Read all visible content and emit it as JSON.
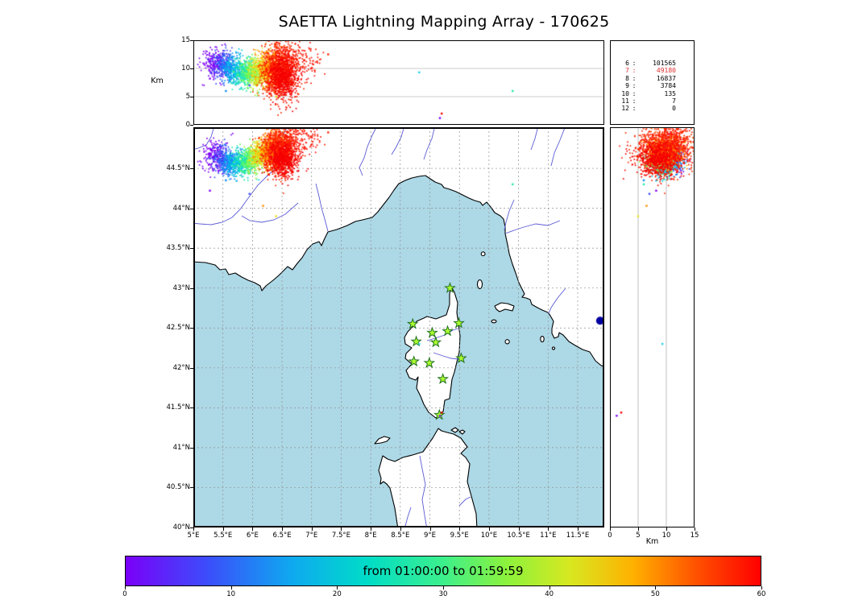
{
  "title": "SAETTA Lightning Mapping Array - 170625",
  "panels": {
    "top": {
      "ylabel": "Km",
      "ytick_labels": [
        "0",
        "5",
        "10",
        "15"
      ]
    },
    "right": {
      "xlabel": "Km",
      "xtick_labels": [
        "0",
        "5",
        "10",
        "15"
      ]
    },
    "map": {
      "lon_tick_labels": [
        "5°E",
        "5.5°E",
        "6°E",
        "6.5°E",
        "7°E",
        "7.5°E",
        "8°E",
        "8.5°E",
        "9°E",
        "9.5°E",
        "10°E",
        "10.5°E",
        "11°E",
        "11.5°E"
      ],
      "lat_tick_labels": [
        "40°N",
        "40.5°N",
        "41°N",
        "41.5°N",
        "42°N",
        "42.5°N",
        "43°N",
        "43.5°N",
        "44°N",
        "44.5°N"
      ]
    },
    "stats": {
      "rows": [
        {
          "label": "6",
          "value": "101565",
          "color": "#000000"
        },
        {
          "label": "7",
          "value": "49180",
          "color": "#e03030"
        },
        {
          "label": "8",
          "value": "16837",
          "color": "#000000"
        },
        {
          "label": "9",
          "value": "3784",
          "color": "#000000"
        },
        {
          "label": "10",
          "value": "135",
          "color": "#000000"
        },
        {
          "label": "11",
          "value": "7",
          "color": "#000000"
        },
        {
          "label": "12",
          "value": "0",
          "color": "#000000"
        }
      ]
    },
    "colorbar": {
      "label": "from 01:00:00 to 01:59:59"
    }
  },
  "chart_data": {
    "type": "scatter",
    "title": "SAETTA Lightning Mapping Array - 170625",
    "description": "Lightning Mapping Array composite: altitude vs longitude (top), longitude vs latitude map with Corsica LMA stations (main), altitude vs latitude (right), sources-per-station-count table, time colorbar in minutes after 01:00:00.",
    "axes": {
      "lon": {
        "min": 5,
        "max": 11.95,
        "ticks": [
          5,
          5.5,
          6,
          6.5,
          7,
          7.5,
          8,
          8.5,
          9,
          9.5,
          10,
          10.5,
          11,
          11.5
        ],
        "grid": [
          5.5,
          6,
          6.5,
          7,
          7.5,
          8,
          8.5,
          9,
          9.5,
          10,
          10.5,
          11,
          11.5
        ]
      },
      "lat": {
        "min": 40,
        "max": 45.015,
        "ticks": [
          40,
          40.5,
          41,
          41.5,
          42,
          42.5,
          43,
          43.5,
          44,
          44.5
        ],
        "grid": [
          40.5,
          41,
          41.5,
          42,
          42.5,
          43,
          43.5,
          44,
          44.5
        ]
      },
      "alt_km": {
        "min": 0,
        "max": 15,
        "ticks": [
          0,
          5,
          10,
          15
        ],
        "gridlines": [
          5,
          10
        ],
        "label": "Km"
      }
    },
    "time_colorbar": {
      "label": "from 01:00:00 to 01:59:59",
      "min_minutes": 0,
      "max_minutes": 60,
      "ticks": [
        0,
        10,
        20,
        30,
        40,
        50,
        60
      ],
      "gradient": [
        [
          0,
          "#7a00f8"
        ],
        [
          0.13,
          "#3b4efb"
        ],
        [
          0.26,
          "#0fa8f0"
        ],
        [
          0.38,
          "#00dcc8"
        ],
        [
          0.5,
          "#3cf08c"
        ],
        [
          0.6,
          "#8cf23c"
        ],
        [
          0.7,
          "#d8e820"
        ],
        [
          0.8,
          "#ffb000"
        ],
        [
          0.9,
          "#ff5000"
        ],
        [
          1,
          "#ff0000"
        ]
      ]
    },
    "sources_per_station_count": {
      "6": 101565,
      "7": 49180,
      "8": 16837,
      "9": 3784,
      "10": 135,
      "11": 7,
      "12": 0
    },
    "stations_lonlat": [
      [
        9.34,
        43.0
      ],
      [
        8.71,
        42.55
      ],
      [
        9.04,
        42.44
      ],
      [
        9.3,
        42.46
      ],
      [
        9.49,
        42.56
      ],
      [
        8.77,
        42.33
      ],
      [
        9.1,
        42.32
      ],
      [
        8.73,
        42.08
      ],
      [
        8.99,
        42.06
      ],
      [
        9.53,
        42.12
      ],
      [
        9.22,
        41.86
      ],
      [
        9.16,
        41.41
      ]
    ],
    "storm_clusters": [
      {
        "t_min": 2,
        "color": "#7d00f5",
        "n": 210,
        "lon": 5.38,
        "lat": 44.66,
        "alt": 11.0,
        "slon": 0.1,
        "slat": 0.1,
        "salt": 1.4
      },
      {
        "t_min": 7,
        "color": "#3b4efb",
        "n": 200,
        "lon": 5.52,
        "lat": 44.6,
        "alt": 10.4,
        "slon": 0.1,
        "slat": 0.09,
        "salt": 1.4
      },
      {
        "t_min": 13,
        "color": "#0f8df2",
        "n": 190,
        "lon": 5.64,
        "lat": 44.56,
        "alt": 10.0,
        "slon": 0.09,
        "slat": 0.08,
        "salt": 1.3
      },
      {
        "t_min": 19,
        "color": "#00c8e0",
        "n": 180,
        "lon": 5.76,
        "lat": 44.55,
        "alt": 9.6,
        "slon": 0.09,
        "slat": 0.08,
        "salt": 1.2
      },
      {
        "t_min": 25,
        "color": "#21e8a8",
        "n": 170,
        "lon": 5.87,
        "lat": 44.57,
        "alt": 9.3,
        "slon": 0.09,
        "slat": 0.08,
        "salt": 1.2
      },
      {
        "t_min": 30,
        "color": "#5ef75e",
        "n": 170,
        "lon": 5.97,
        "lat": 44.6,
        "alt": 9.2,
        "slon": 0.09,
        "slat": 0.08,
        "salt": 1.2
      },
      {
        "t_min": 35,
        "color": "#a8f23c",
        "n": 180,
        "lon": 6.07,
        "lat": 44.64,
        "alt": 9.3,
        "slon": 0.09,
        "slat": 0.09,
        "salt": 1.3
      },
      {
        "t_min": 40,
        "color": "#e8e020",
        "n": 190,
        "lon": 6.17,
        "lat": 44.68,
        "alt": 9.5,
        "slon": 0.1,
        "slat": 0.09,
        "salt": 1.4
      },
      {
        "t_min": 45,
        "color": "#ffb000",
        "n": 230,
        "lon": 6.27,
        "lat": 44.71,
        "alt": 9.8,
        "slon": 0.11,
        "slat": 0.1,
        "salt": 1.6
      },
      {
        "t_min": 50,
        "color": "#ff7000",
        "n": 300,
        "lon": 6.36,
        "lat": 44.73,
        "alt": 10.0,
        "slon": 0.12,
        "slat": 0.11,
        "salt": 1.8
      },
      {
        "t_min": 55,
        "color": "#ff2a00",
        "n": 900,
        "lon": 6.47,
        "lat": 44.74,
        "alt": 9.6,
        "slon": 0.14,
        "slat": 0.14,
        "salt": 2.5
      },
      {
        "t_min": 57,
        "color": "#f50000",
        "n": 600,
        "lon": 6.52,
        "lat": 44.62,
        "alt": 8.6,
        "slon": 0.13,
        "slat": 0.11,
        "salt": 2.0
      },
      {
        "t_min": 58,
        "color": "#ff1500",
        "n": 140,
        "lon": 6.8,
        "lat": 44.88,
        "alt": 11.0,
        "slon": 0.18,
        "slat": 0.1,
        "salt": 1.6
      }
    ],
    "stray_points": [
      {
        "lon": 8.82,
        "lat": 42.3,
        "alt": 9.3,
        "color": "#21d0e8"
      },
      {
        "lon": 6.18,
        "lat": 44.03,
        "alt": 6.5,
        "color": "#ff9000"
      },
      {
        "lon": 5.28,
        "lat": 44.22,
        "alt": 8.2,
        "color": "#8000ff"
      },
      {
        "lon": 5.95,
        "lat": 44.18,
        "alt": 7.0,
        "color": "#3b4efb"
      },
      {
        "lon": 7.28,
        "lat": 44.95,
        "alt": 12.5,
        "color": "#ff2a00"
      },
      {
        "lon": 9.2,
        "lat": 41.44,
        "alt": 2.0,
        "color": "#f50000"
      },
      {
        "lon": 9.17,
        "lat": 41.4,
        "alt": 1.2,
        "color": "#8000ff"
      },
      {
        "lon": 10.4,
        "lat": 44.3,
        "alt": 6.0,
        "color": "#21e8a8"
      },
      {
        "lon": 6.4,
        "lat": 43.9,
        "alt": 5.0,
        "color": "#e8e020"
      },
      {
        "lon": 5.55,
        "lat": 44.35,
        "alt": 6.0,
        "color": "#0f8df2"
      }
    ],
    "map_marker": {
      "lon": 11.88,
      "lat": 42.59,
      "color": "#0000a0",
      "radius_px": 5
    }
  }
}
